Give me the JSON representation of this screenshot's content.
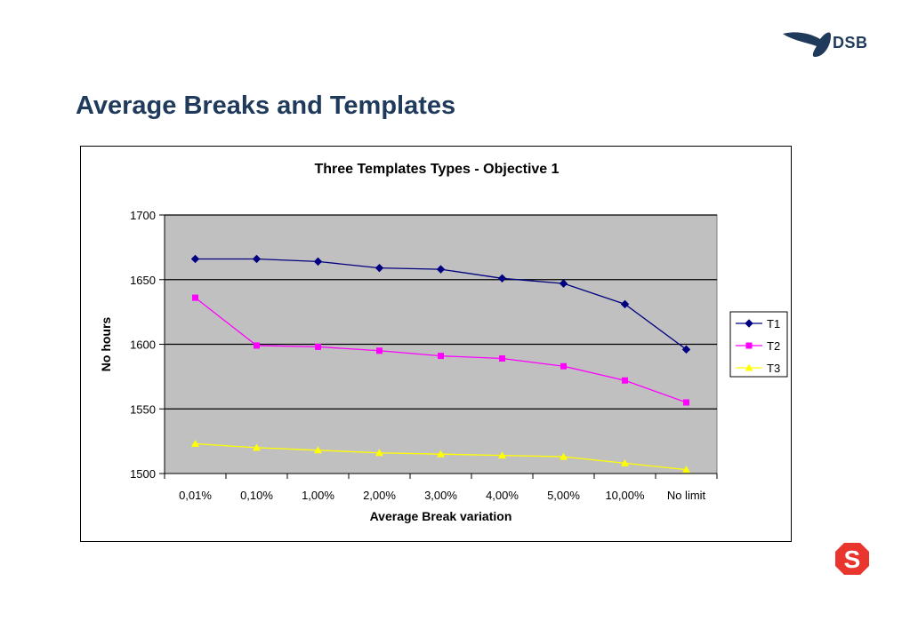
{
  "slide": {
    "title": "Average Breaks and Templates"
  },
  "brand": {
    "name": "DSB",
    "color": "#1f3a5a",
    "s_logo_color": "#e8352e"
  },
  "chart_data": {
    "type": "line",
    "title": "Three Templates Types -  Objective 1",
    "xlabel": "Average Break variation",
    "ylabel": "No hours",
    "categories": [
      "0,01%",
      "0,10%",
      "1,00%",
      "2,00%",
      "3,00%",
      "4,00%",
      "5,00%",
      "10,00%",
      "No limit"
    ],
    "ylim": [
      1500,
      1700
    ],
    "yticks": [
      1500,
      1550,
      1600,
      1650,
      1700
    ],
    "grid": true,
    "plot_background": "#c0c0c0",
    "legend_position": "right",
    "series": [
      {
        "name": "T1",
        "color": "#000080",
        "marker": "diamond",
        "values": [
          1666,
          1666,
          1664,
          1659,
          1658,
          1651,
          1647,
          1631,
          1596
        ]
      },
      {
        "name": "T2",
        "color": "#ff00ff",
        "marker": "square",
        "values": [
          1636,
          1599,
          1598,
          1595,
          1591,
          1589,
          1583,
          1572,
          1555
        ]
      },
      {
        "name": "T3",
        "color": "#ffff00",
        "marker": "triangle",
        "values": [
          1523,
          1520,
          1518,
          1516,
          1515,
          1514,
          1513,
          1508,
          1503
        ]
      }
    ]
  }
}
